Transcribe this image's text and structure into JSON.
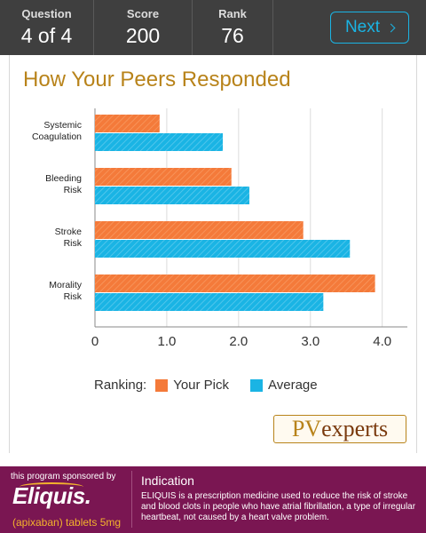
{
  "header": {
    "question": {
      "label": "Question",
      "value": "4 of 4"
    },
    "score": {
      "label": "Score",
      "value": "200"
    },
    "rank": {
      "label": "Rank",
      "value": "76"
    },
    "next_label": "Next"
  },
  "page_title": "How Your Peers Responded",
  "chart_data": {
    "type": "bar",
    "orientation": "horizontal",
    "categories": [
      [
        "Systemic",
        "Coagulation"
      ],
      [
        "Bleeding",
        "Risk"
      ],
      [
        "Stroke",
        "Risk"
      ],
      [
        "Morality",
        "Risk"
      ]
    ],
    "series": [
      {
        "name": "Your Pick",
        "color": "#f47a3a",
        "values": [
          0.9,
          1.9,
          2.9,
          3.9
        ]
      },
      {
        "name": "Average",
        "color": "#1ab4e4",
        "values": [
          1.78,
          2.15,
          3.55,
          3.18
        ]
      }
    ],
    "x_ticks": [
      "0",
      "1.0",
      "2.0",
      "3.0",
      "4.0"
    ],
    "xlim": [
      0,
      4.35
    ],
    "grid": true,
    "hatched": true
  },
  "legend": {
    "title": "Ranking:",
    "items": [
      "Your Pick",
      "Average"
    ]
  },
  "logo": {
    "part1": "PV",
    "part2": "experts"
  },
  "footer": {
    "sponsor_text": "this program sponsored by",
    "brand": "Eliquis.",
    "generic": "(apixaban) tablets 5mg",
    "indication_title": "Indication",
    "indication_text": "ELIQUIS is a prescription medicine used to reduce the risk of stroke and blood clots in people who have atrial fibrillation, a type of irregular heartbeat, not caused by a heart valve problem."
  },
  "colors": {
    "accent": "#1ab4e4",
    "pick": "#f47a3a",
    "title": "#b8831a",
    "footer": "#7a1652"
  }
}
